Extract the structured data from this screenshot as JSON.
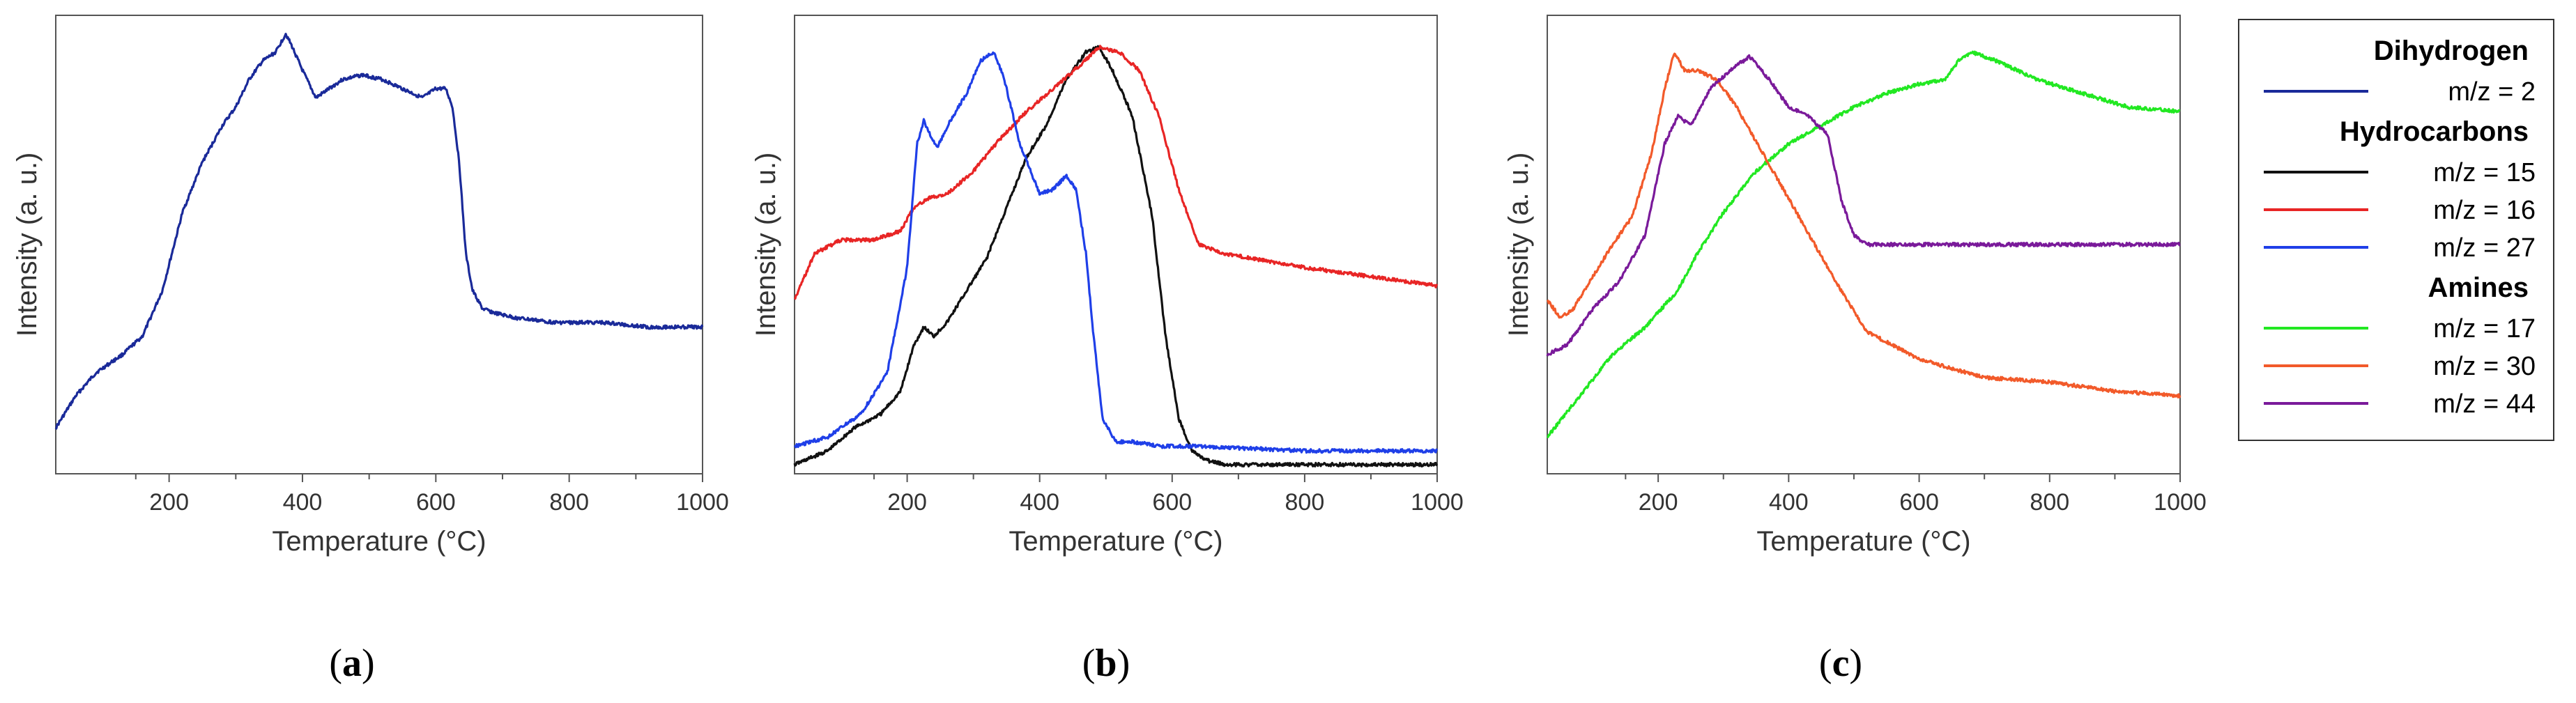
{
  "chart_data": [
    {
      "type": "line",
      "panel_label": "a",
      "xlabel": "Temperature (°C)",
      "ylabel": "Intensity (a. u.)",
      "xlim": [
        30,
        1000
      ],
      "ylim": [
        0,
        1
      ],
      "xticks": [
        200,
        400,
        600,
        800,
        1000
      ],
      "series": [
        {
          "name": "m/z = 2",
          "group": "Dihydrogen",
          "color": "#1a2a99",
          "x": [
            30,
            60,
            90,
            130,
            160,
            190,
            220,
            250,
            280,
            300,
            320,
            340,
            360,
            375,
            385,
            400,
            420,
            440,
            460,
            490,
            520,
            550,
            580,
            600,
            615,
            625,
            635,
            645,
            655,
            670,
            690,
            720,
            780,
            850,
            920,
            1000
          ],
          "y": [
            0.1,
            0.17,
            0.22,
            0.26,
            0.3,
            0.4,
            0.57,
            0.68,
            0.76,
            0.8,
            0.86,
            0.9,
            0.92,
            0.96,
            0.93,
            0.88,
            0.82,
            0.84,
            0.86,
            0.87,
            0.86,
            0.84,
            0.82,
            0.84,
            0.84,
            0.8,
            0.68,
            0.48,
            0.4,
            0.36,
            0.35,
            0.34,
            0.33,
            0.33,
            0.32,
            0.32
          ]
        }
      ]
    },
    {
      "type": "line",
      "panel_label": "b",
      "xlabel": "Temperature (°C)",
      "ylabel": "Intensity (a. u.)",
      "xlim": [
        30,
        1000
      ],
      "ylim": [
        0,
        1
      ],
      "xticks": [
        200,
        400,
        600,
        800,
        1000
      ],
      "series": [
        {
          "name": "m/z = 15",
          "group": "Hydrocarbons",
          "color": "#111111",
          "x": [
            30,
            80,
            120,
            160,
            190,
            210,
            225,
            240,
            260,
            290,
            320,
            350,
            380,
            410,
            440,
            470,
            490,
            510,
            540,
            570,
            590,
            610,
            630,
            650,
            680,
            720,
            800,
            900,
            1000
          ],
          "y": [
            0.02,
            0.05,
            0.1,
            0.13,
            0.18,
            0.28,
            0.32,
            0.3,
            0.33,
            0.4,
            0.47,
            0.58,
            0.69,
            0.76,
            0.86,
            0.92,
            0.93,
            0.88,
            0.78,
            0.56,
            0.3,
            0.12,
            0.05,
            0.03,
            0.02,
            0.02,
            0.02,
            0.02,
            0.02
          ]
        },
        {
          "name": "m/z = 16",
          "group": "Hydrocarbons",
          "color": "#e82525",
          "x": [
            30,
            60,
            100,
            150,
            190,
            210,
            230,
            260,
            300,
            340,
            380,
            420,
            460,
            490,
            520,
            550,
            580,
            610,
            640,
            680,
            800,
            900,
            1000
          ],
          "y": [
            0.38,
            0.48,
            0.51,
            0.51,
            0.53,
            0.58,
            0.6,
            0.61,
            0.66,
            0.73,
            0.79,
            0.84,
            0.89,
            0.93,
            0.92,
            0.88,
            0.78,
            0.62,
            0.5,
            0.48,
            0.45,
            0.43,
            0.41
          ]
        },
        {
          "name": "m/z = 27",
          "group": "Hydrocarbons",
          "color": "#1f3fe8",
          "x": [
            30,
            80,
            130,
            170,
            200,
            215,
            225,
            245,
            265,
            290,
            310,
            330,
            345,
            370,
            400,
            420,
            440,
            455,
            470,
            480,
            495,
            515,
            540,
            580,
            640,
            800,
            1000
          ],
          "y": [
            0.06,
            0.08,
            0.13,
            0.22,
            0.45,
            0.72,
            0.77,
            0.71,
            0.77,
            0.83,
            0.9,
            0.92,
            0.87,
            0.72,
            0.61,
            0.62,
            0.65,
            0.62,
            0.48,
            0.32,
            0.12,
            0.07,
            0.07,
            0.06,
            0.06,
            0.05,
            0.05
          ]
        }
      ]
    },
    {
      "type": "line",
      "panel_label": "c",
      "xlabel": "Temperature (°C)",
      "ylabel": "Intensity (a. u.)",
      "xlim": [
        30,
        1000
      ],
      "ylim": [
        0,
        1
      ],
      "xticks": [
        200,
        400,
        600,
        800,
        1000
      ],
      "series": [
        {
          "name": "m/z = 17",
          "group": "Amines",
          "color": "#22e822",
          "x": [
            30,
            80,
            130,
            180,
            230,
            260,
            300,
            350,
            400,
            450,
            500,
            550,
            600,
            640,
            660,
            680,
            720,
            780,
            850,
            920,
            1000
          ],
          "y": [
            0.08,
            0.17,
            0.26,
            0.32,
            0.4,
            0.48,
            0.57,
            0.66,
            0.72,
            0.76,
            0.8,
            0.83,
            0.85,
            0.86,
            0.9,
            0.92,
            0.9,
            0.86,
            0.83,
            0.8,
            0.79
          ]
        },
        {
          "name": "m/z = 30",
          "group": "Amines",
          "color": "#f25a2a",
          "x": [
            30,
            50,
            70,
            100,
            130,
            160,
            190,
            210,
            225,
            240,
            260,
            290,
            320,
            360,
            400,
            440,
            480,
            520,
            560,
            600,
            700,
            800,
            900,
            1000
          ],
          "y": [
            0.38,
            0.34,
            0.36,
            0.43,
            0.5,
            0.56,
            0.7,
            0.84,
            0.92,
            0.88,
            0.88,
            0.86,
            0.8,
            0.7,
            0.6,
            0.5,
            0.4,
            0.31,
            0.28,
            0.25,
            0.21,
            0.2,
            0.18,
            0.17
          ]
        },
        {
          "name": "m/z = 44",
          "group": "Amines",
          "color": "#7a1a9a",
          "x": [
            30,
            60,
            100,
            140,
            180,
            210,
            230,
            250,
            280,
            310,
            340,
            370,
            400,
            430,
            460,
            480,
            500,
            520,
            540,
            580,
            650,
            800,
            1000
          ],
          "y": [
            0.26,
            0.28,
            0.36,
            0.42,
            0.52,
            0.72,
            0.78,
            0.76,
            0.84,
            0.88,
            0.91,
            0.86,
            0.8,
            0.78,
            0.74,
            0.6,
            0.52,
            0.5,
            0.5,
            0.5,
            0.5,
            0.5,
            0.5
          ]
        }
      ]
    }
  ],
  "legend": {
    "groups": [
      {
        "title": "Dihydrogen",
        "entries": [
          {
            "label": "m/z = 2",
            "color": "#1a2a99"
          }
        ]
      },
      {
        "title": "Hydrocarbons",
        "entries": [
          {
            "label": "m/z = 15",
            "color": "#111111"
          },
          {
            "label": "m/z = 16",
            "color": "#e82525"
          },
          {
            "label": "m/z = 27",
            "color": "#1f3fe8"
          }
        ]
      },
      {
        "title": "Amines",
        "entries": [
          {
            "label": "m/z = 17",
            "color": "#22e822"
          },
          {
            "label": "m/z = 30",
            "color": "#f25a2a"
          },
          {
            "label": "m/z = 44",
            "color": "#7a1a9a"
          }
        ]
      }
    ]
  }
}
